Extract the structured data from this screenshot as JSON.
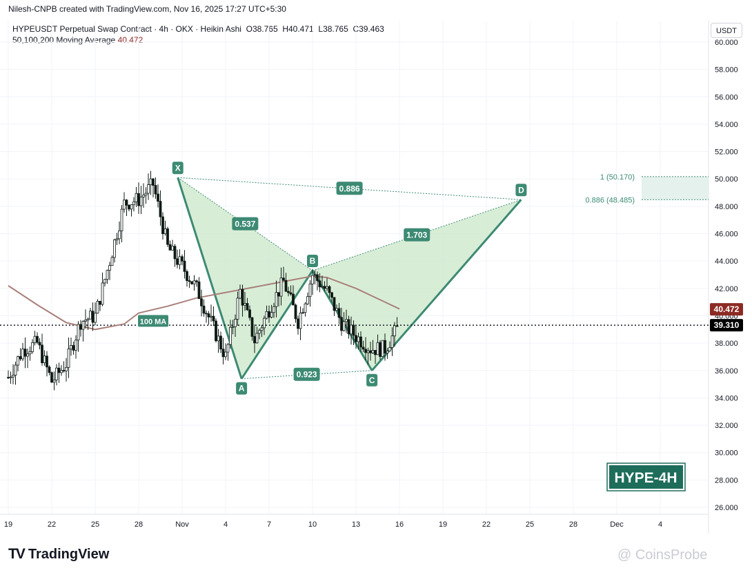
{
  "header": {
    "credit": "Nilesh-CNPB created with TradingView.com, Nov 16, 2025 17:27 UTC+5:30",
    "symbol_line": "HYPEUSDT Perpetual Swap Contract · 4h · OKX · Heikin Ashi",
    "ohlc": {
      "o_label": "O",
      "o": "38.765",
      "h_label": "H",
      "h": "40.471",
      "l_label": "L",
      "l": "38.765",
      "c_label": "C",
      "c": "39.463"
    },
    "ma_label": "50,100,200 Moving Average",
    "ma_value": "40.472",
    "currency": "USDT"
  },
  "footer": {
    "logo": "TradingView",
    "watermark": "@ CoinsProbe"
  },
  "badge": "HYPE-4H",
  "colors": {
    "pattern_line": "#3d8a73",
    "pattern_fill": "#c7e6c4",
    "label_bg": "#3d8a73",
    "ma": "#a8807a",
    "candle": "#0e1a14",
    "ma_badge": "#8c2b24",
    "price_badge": "#000000",
    "target_zone": "#e4f1ec"
  },
  "chart_data": {
    "type": "candlestick",
    "title": "HYPEUSDT Perpetual Swap Contract 4h Heikin Ashi",
    "y_axis": {
      "min": 26,
      "max": 60,
      "step": 2,
      "tick_labels": [
        "26.000",
        "28.000",
        "30.000",
        "32.000",
        "34.000",
        "36.000",
        "38.000",
        "40.000",
        "42.000",
        "44.000",
        "46.000",
        "48.000",
        "50.000",
        "52.000",
        "54.000",
        "56.000",
        "58.000",
        "60.000"
      ]
    },
    "x_axis": {
      "tick_labels": [
        {
          "label": "19",
          "day": 0
        },
        {
          "label": "22",
          "day": 3
        },
        {
          "label": "25",
          "day": 6
        },
        {
          "label": "28",
          "day": 9
        },
        {
          "label": "Nov",
          "day": 12
        },
        {
          "label": "4",
          "day": 15
        },
        {
          "label": "7",
          "day": 18
        },
        {
          "label": "10",
          "day": 21
        },
        {
          "label": "13",
          "day": 24
        },
        {
          "label": "16",
          "day": 27
        },
        {
          "label": "19",
          "day": 30
        },
        {
          "label": "22",
          "day": 33
        },
        {
          "label": "25",
          "day": 36
        },
        {
          "label": "28",
          "day": 39
        },
        {
          "label": "Dec",
          "day": 42
        },
        {
          "label": "4",
          "day": 45
        }
      ]
    },
    "price_path": [
      [
        0,
        35.5
      ],
      [
        1,
        37.5
      ],
      [
        2,
        38.0
      ],
      [
        3,
        35.2
      ],
      [
        4,
        36.5
      ],
      [
        5,
        39.6
      ],
      [
        6,
        40.0
      ],
      [
        7,
        44.0
      ],
      [
        8,
        48.2
      ],
      [
        9,
        48.5
      ],
      [
        10,
        49.6
      ],
      [
        11,
        45.0
      ],
      [
        12,
        43.6
      ],
      [
        13,
        42.0
      ],
      [
        14,
        39.5
      ],
      [
        15,
        37.0
      ],
      [
        16,
        41.8
      ],
      [
        17,
        38.2
      ],
      [
        18,
        40.5
      ],
      [
        19,
        42.5
      ],
      [
        20,
        39.6
      ],
      [
        21,
        43.0
      ],
      [
        22,
        41.8
      ],
      [
        23,
        39.5
      ],
      [
        24,
        38.5
      ],
      [
        25,
        37.6
      ],
      [
        26,
        37.6
      ],
      [
        27,
        39.3
      ]
    ],
    "moving_average": {
      "name": "100 MA",
      "points": [
        [
          0,
          42.2
        ],
        [
          2,
          40.8
        ],
        [
          4,
          39.5
        ],
        [
          6,
          39.0
        ],
        [
          8,
          39.4
        ],
        [
          9,
          40.2
        ],
        [
          11,
          40.7
        ],
        [
          13,
          41.3
        ],
        [
          15,
          41.7
        ],
        [
          17,
          42.1
        ],
        [
          19,
          42.5
        ],
        [
          21,
          42.9
        ],
        [
          22,
          42.8
        ],
        [
          24,
          42.0
        ],
        [
          26,
          41.0
        ],
        [
          27,
          40.5
        ]
      ]
    },
    "last_price": {
      "value": 39.31,
      "label": "39.310"
    },
    "ma_last": {
      "value": 40.472,
      "label": "40.472"
    },
    "harmonic_pattern": {
      "type": "bearish cypher / crab projection",
      "points": [
        {
          "name": "X",
          "day": 11.7,
          "price": 50.1
        },
        {
          "name": "A",
          "day": 16.1,
          "price": 35.4
        },
        {
          "name": "B",
          "day": 21.0,
          "price": 43.3
        },
        {
          "name": "C",
          "day": 25.1,
          "price": 36.0
        },
        {
          "name": "D",
          "day": 35.4,
          "price": 48.485
        }
      ],
      "ratios": [
        {
          "label": "0.537",
          "from": "X",
          "to": "B"
        },
        {
          "label": "1.703",
          "from": "B",
          "to": "D"
        },
        {
          "label": "0.923",
          "from": "A",
          "to": "C"
        },
        {
          "label": "0.886",
          "from": "X",
          "to": "D"
        }
      ]
    },
    "target_zone": {
      "top": 50.17,
      "bottom": 48.485,
      "top_label": "1 (50.170)",
      "bottom_label": "0.886 (48.485)"
    },
    "annotations": [
      {
        "text": "100 MA",
        "day": 10.0,
        "price": 39.6
      }
    ]
  }
}
